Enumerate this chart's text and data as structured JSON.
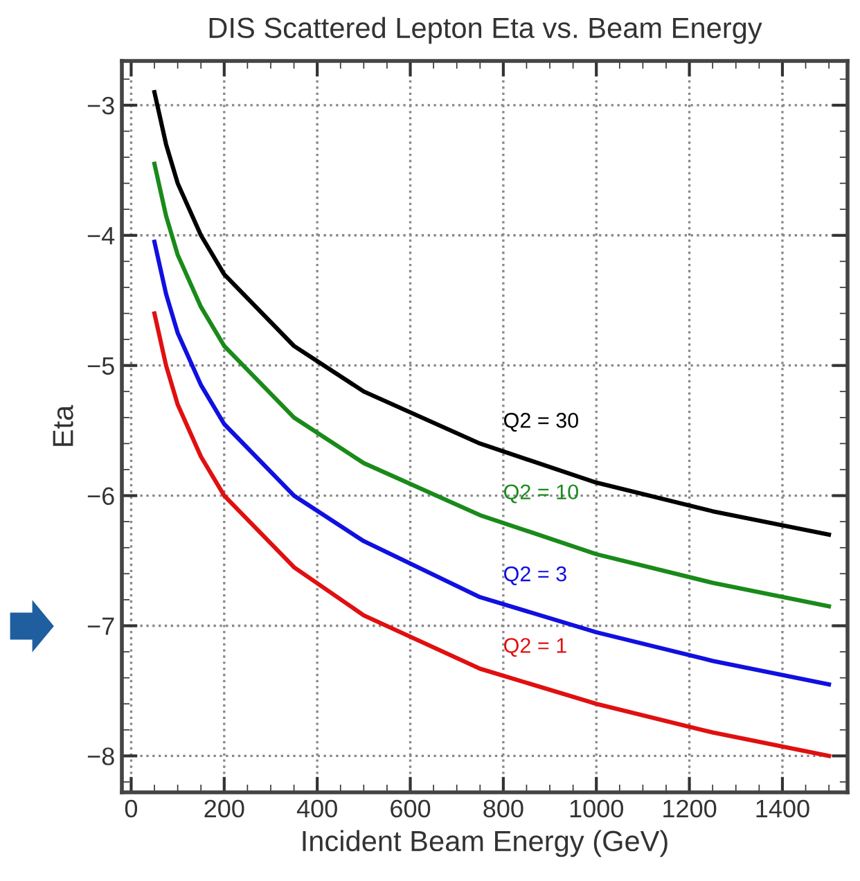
{
  "chart_data": {
    "type": "line",
    "title": "DIS Scattered Lepton Eta vs. Beam Energy",
    "xlabel": "Incident Beam Energy (GeV)",
    "ylabel": "Eta",
    "x": [
      50,
      75,
      100,
      150,
      200,
      350,
      500,
      750,
      1000,
      1250,
      1500
    ],
    "series": [
      {
        "name": "Q2 = 30",
        "color": "#000000",
        "values": [
          -2.9,
          -3.3,
          -3.6,
          -4.0,
          -4.3,
          -4.85,
          -5.2,
          -5.6,
          -5.9,
          -6.12,
          -6.3
        ]
      },
      {
        "name": "Q2 = 10",
        "color": "#1a8a1a",
        "values": [
          -3.45,
          -3.85,
          -4.15,
          -4.55,
          -4.85,
          -5.4,
          -5.75,
          -6.15,
          -6.45,
          -6.67,
          -6.85
        ]
      },
      {
        "name": "Q2 = 3",
        "color": "#1010e0",
        "values": [
          -4.05,
          -4.45,
          -4.75,
          -5.15,
          -5.45,
          -6.0,
          -6.35,
          -6.78,
          -7.05,
          -7.27,
          -7.45
        ]
      },
      {
        "name": "Q2 = 1",
        "color": "#e01010",
        "values": [
          -4.6,
          -5.0,
          -5.3,
          -5.7,
          -6.0,
          -6.55,
          -6.92,
          -7.33,
          -7.6,
          -7.82,
          -8.0
        ]
      }
    ],
    "xlim": [
      -20,
      1540
    ],
    "ylim": [
      -8.28,
      -2.66
    ],
    "xticks": [
      0,
      200,
      400,
      600,
      800,
      1000,
      1200,
      1400
    ],
    "yticks": [
      {
        "value": -3,
        "label": "−3"
      },
      {
        "value": -4,
        "label": "−4"
      },
      {
        "value": -5,
        "label": "−5"
      },
      {
        "value": -6,
        "label": "−6"
      },
      {
        "value": -7,
        "label": "−7"
      },
      {
        "value": -8,
        "label": "−8"
      }
    ],
    "grid": true,
    "legend": false,
    "marker": "none",
    "line_style": "solid"
  }
}
